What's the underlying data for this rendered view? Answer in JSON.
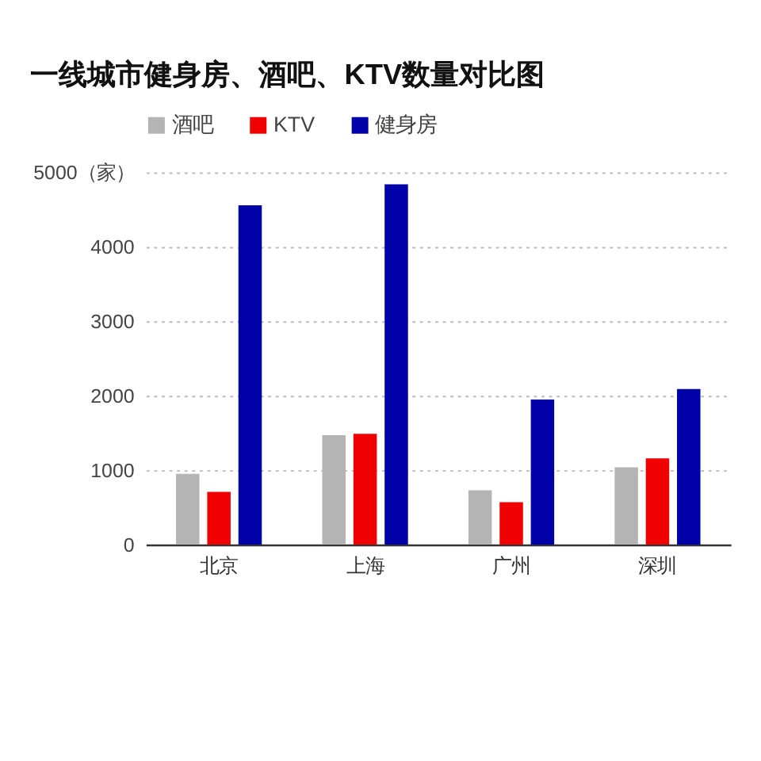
{
  "chart_data": {
    "type": "bar",
    "title": "一线城市健身房、酒吧、KTV数量对比图",
    "categories": [
      "北京",
      "上海",
      "广州",
      "深圳"
    ],
    "series": [
      {
        "name": "酒吧",
        "color": "#b4b4b4",
        "values": [
          950,
          1470,
          730,
          1040
        ]
      },
      {
        "name": "KTV",
        "color": "#f00000",
        "values": [
          710,
          1490,
          570,
          1160
        ]
      },
      {
        "name": "健身房",
        "color": "#0000a8",
        "values": [
          4560,
          4840,
          1950,
          2090
        ]
      }
    ],
    "ylim": [
      0,
      5000
    ],
    "yticks": [
      0,
      1000,
      2000,
      3000,
      4000,
      {
        "value": 5000,
        "label": "5000（家）"
      }
    ],
    "grid": "y",
    "legend": "top left"
  }
}
